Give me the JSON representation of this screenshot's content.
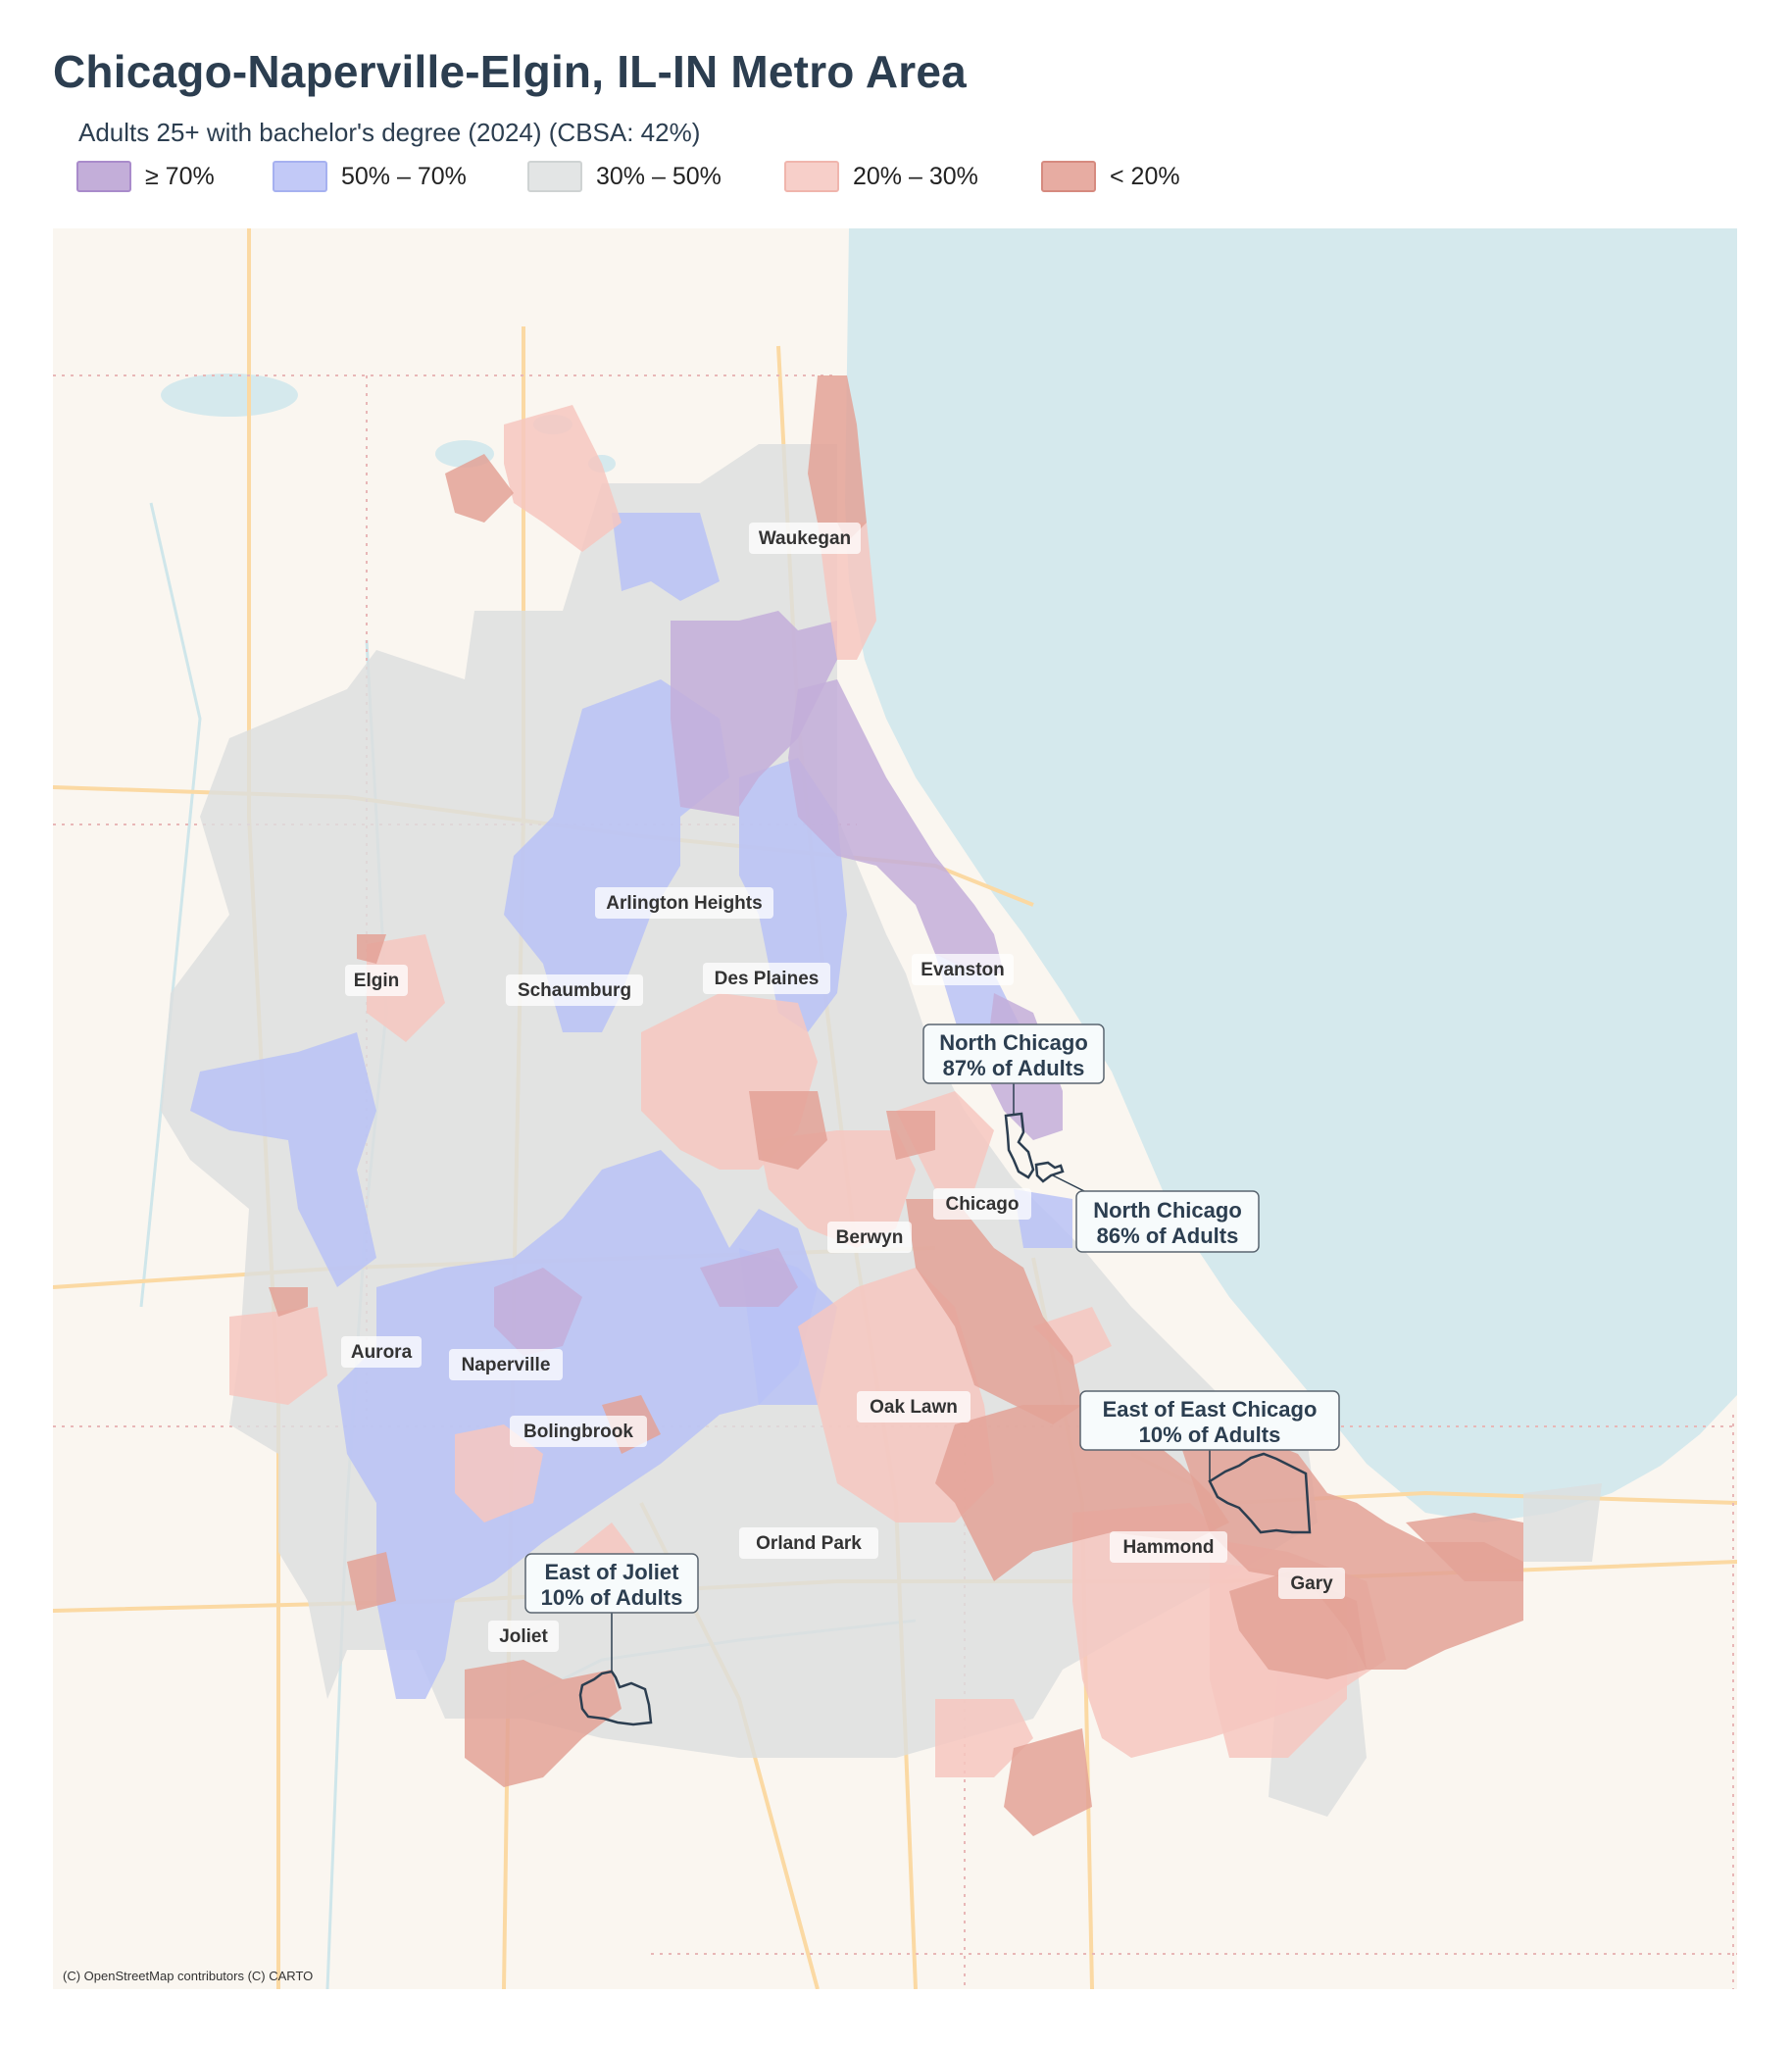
{
  "title": "Chicago-Naperville-Elgin, IL-IN Metro Area",
  "subtitle": "Adults 25+ with bachelor's degree (2024)  (CBSA: 42%)",
  "legend": [
    {
      "label": "≥ 70%",
      "fill": "#c3aed9",
      "stroke": "#a98bcb"
    },
    {
      "label": "50% – 70%",
      "fill": "#c2c9f7",
      "stroke": "#a6b1f0"
    },
    {
      "label": "30% – 50%",
      "fill": "#e3e5e5",
      "stroke": "#cfd3d3"
    },
    {
      "label": "20% – 30%",
      "fill": "#f7cfc9",
      "stroke": "#f0b5ad"
    },
    {
      "label": "< 20%",
      "fill": "#e7aca2",
      "stroke": "#d68a7f"
    }
  ],
  "places": [
    {
      "name": "Waukegan"
    },
    {
      "name": "Arlington Heights"
    },
    {
      "name": "Elgin"
    },
    {
      "name": "Schaumburg"
    },
    {
      "name": "Des Plaines"
    },
    {
      "name": "Evanston"
    },
    {
      "name": "Chicago"
    },
    {
      "name": "Berwyn"
    },
    {
      "name": "Aurora"
    },
    {
      "name": "Naperville"
    },
    {
      "name": "Bolingbrook"
    },
    {
      "name": "Oak Lawn"
    },
    {
      "name": "Orland Park"
    },
    {
      "name": "Hammond"
    },
    {
      "name": "Gary"
    },
    {
      "name": "Joliet"
    }
  ],
  "callouts": [
    {
      "name": "North Chicago",
      "value": "87% of Adults"
    },
    {
      "name": "North Chicago",
      "value": "86% of Adults"
    },
    {
      "name": "East of East Chicago",
      "value": "10% of Adults"
    },
    {
      "name": "East of Joliet",
      "value": "10% of Adults"
    }
  ],
  "attribution": "(C) OpenStreetMap contributors (C) CARTO",
  "colors": {
    "lake": "#d5e9ed",
    "land": "#faf6f0",
    "road": "#fbd9a3",
    "highlight_outline": "#2c3e50"
  }
}
